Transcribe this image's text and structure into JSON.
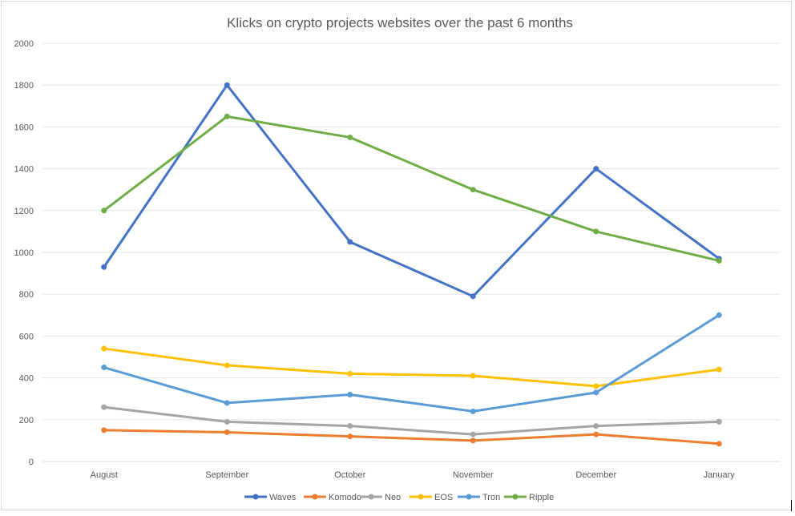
{
  "chart_data": {
    "type": "line",
    "title": "Klicks on crypto projects websites over the past 6 months",
    "categories": [
      "August",
      "September",
      "October",
      "November",
      "December",
      "January"
    ],
    "ylim": [
      0,
      2000
    ],
    "yticks": [
      0,
      200,
      400,
      600,
      800,
      1000,
      1200,
      1400,
      1600,
      1800,
      2000
    ],
    "grid": true,
    "legend_position": "bottom",
    "series": [
      {
        "name": "Waves",
        "color": "#4472C4",
        "values": [
          930,
          1800,
          1050,
          790,
          1400,
          970
        ]
      },
      {
        "name": "Komodo",
        "color": "#ED7D31",
        "values": [
          150,
          140,
          120,
          100,
          130,
          85
        ]
      },
      {
        "name": "Neo",
        "color": "#A5A5A5",
        "values": [
          260,
          190,
          170,
          130,
          170,
          190
        ]
      },
      {
        "name": "EOS",
        "color": "#FFC000",
        "values": [
          540,
          460,
          420,
          410,
          360,
          440
        ]
      },
      {
        "name": "Tron",
        "color": "#5B9BD5",
        "values": [
          450,
          280,
          320,
          240,
          330,
          700
        ]
      },
      {
        "name": "Ripple",
        "color": "#70AD47",
        "values": [
          1200,
          1650,
          1550,
          1300,
          1100,
          960
        ]
      }
    ]
  }
}
